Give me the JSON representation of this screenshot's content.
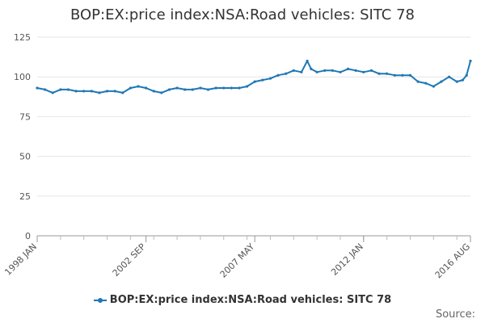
{
  "chart_data": {
    "type": "line",
    "title": "BOP:EX:price index:NSA:Road vehicles: SITC 78",
    "xlabel": "",
    "ylabel": "",
    "ylim": [
      0,
      125
    ],
    "yticks": [
      0,
      25,
      50,
      75,
      100,
      125
    ],
    "xlim": [
      1998.0,
      2016.583
    ],
    "xticks": [
      {
        "value": 1998.0,
        "label": "1998 JAN"
      },
      {
        "value": 2002.667,
        "label": "2002 SEP"
      },
      {
        "value": 2007.333,
        "label": "2007 MAY"
      },
      {
        "value": 2012.0,
        "label": "2012 JAN"
      },
      {
        "value": 2016.583,
        "label": "2016 AUG"
      }
    ],
    "series": [
      {
        "name": "BOP:EX:price index:NSA:Road vehicles: SITC 78",
        "color": "#1f77b4",
        "x": [
          1998.0,
          1998.333,
          1998.667,
          1999.0,
          1999.333,
          1999.667,
          2000.0,
          2000.333,
          2000.667,
          2001.0,
          2001.333,
          2001.667,
          2002.0,
          2002.333,
          2002.667,
          2003.0,
          2003.333,
          2003.667,
          2004.0,
          2004.333,
          2004.667,
          2005.0,
          2005.333,
          2005.667,
          2006.0,
          2006.333,
          2006.667,
          2007.0,
          2007.333,
          2007.667,
          2008.0,
          2008.333,
          2008.667,
          2009.0,
          2009.333,
          2009.583,
          2009.75,
          2010.0,
          2010.333,
          2010.667,
          2011.0,
          2011.333,
          2011.667,
          2012.0,
          2012.333,
          2012.667,
          2013.0,
          2013.333,
          2013.667,
          2014.0,
          2014.333,
          2014.667,
          2015.0,
          2015.333,
          2015.667,
          2016.0,
          2016.25,
          2016.417,
          2016.583
        ],
        "values": [
          93,
          92,
          90,
          92,
          92,
          91,
          91,
          91,
          90,
          91,
          91,
          90,
          93,
          94,
          93,
          91,
          90,
          92,
          93,
          92,
          92,
          93,
          92,
          93,
          93,
          93,
          93,
          94,
          97,
          98,
          99,
          101,
          102,
          104,
          103,
          110,
          105,
          103,
          104,
          104,
          103,
          105,
          104,
          103,
          104,
          102,
          102,
          101,
          101,
          101,
          97,
          96,
          94,
          97,
          100,
          97,
          98,
          101,
          110
        ]
      }
    ],
    "legend_position": "bottom"
  },
  "source_label": "Source:"
}
